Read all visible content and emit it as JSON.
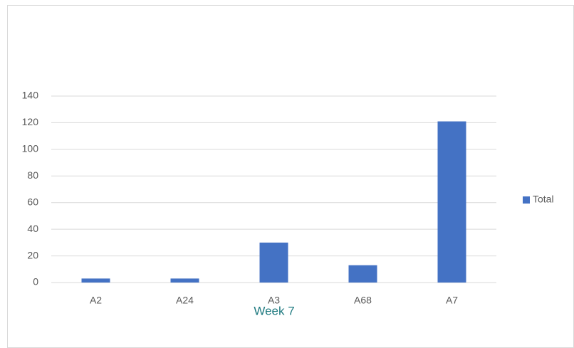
{
  "chart_data": {
    "type": "bar",
    "xlabel": "Week 7",
    "categories": [
      "A2",
      "A24",
      "A3",
      "A68",
      "A7"
    ],
    "series": [
      {
        "name": "Total",
        "color": "#4472c4",
        "values": [
          3,
          3,
          30,
          13,
          121
        ]
      }
    ],
    "ylim": [
      0,
      140
    ],
    "yticks": [
      0,
      20,
      40,
      60,
      80,
      100,
      120,
      140
    ],
    "grid": true,
    "legend": "right"
  }
}
